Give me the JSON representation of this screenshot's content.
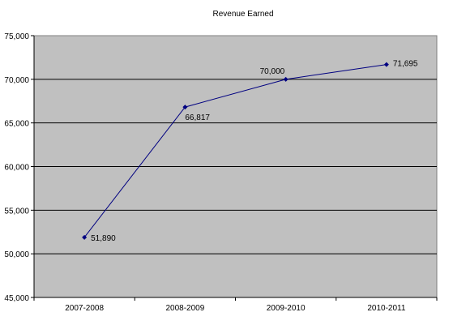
{
  "chart_data": {
    "type": "line",
    "title": "Revenue Earned",
    "xlabel": "",
    "ylabel": "",
    "categories": [
      "2007-2008",
      "2008-2009",
      "2009-2010",
      "2010-2011"
    ],
    "series": [
      {
        "values": [
          51890,
          66817,
          70000,
          71695
        ]
      }
    ],
    "data_labels": [
      "51,890",
      "66,817",
      "70,000",
      "71,695"
    ],
    "y_ticks": [
      "45,000",
      "50,000",
      "55,000",
      "60,000",
      "65,000",
      "70,000",
      "75,000"
    ],
    "ylim": [
      45000,
      75000
    ],
    "grid": true,
    "legend": "none",
    "colors": {
      "plot_background": "#c0c0c0",
      "gridline": "#000000",
      "line": "#000080",
      "marker": "#000080"
    }
  }
}
